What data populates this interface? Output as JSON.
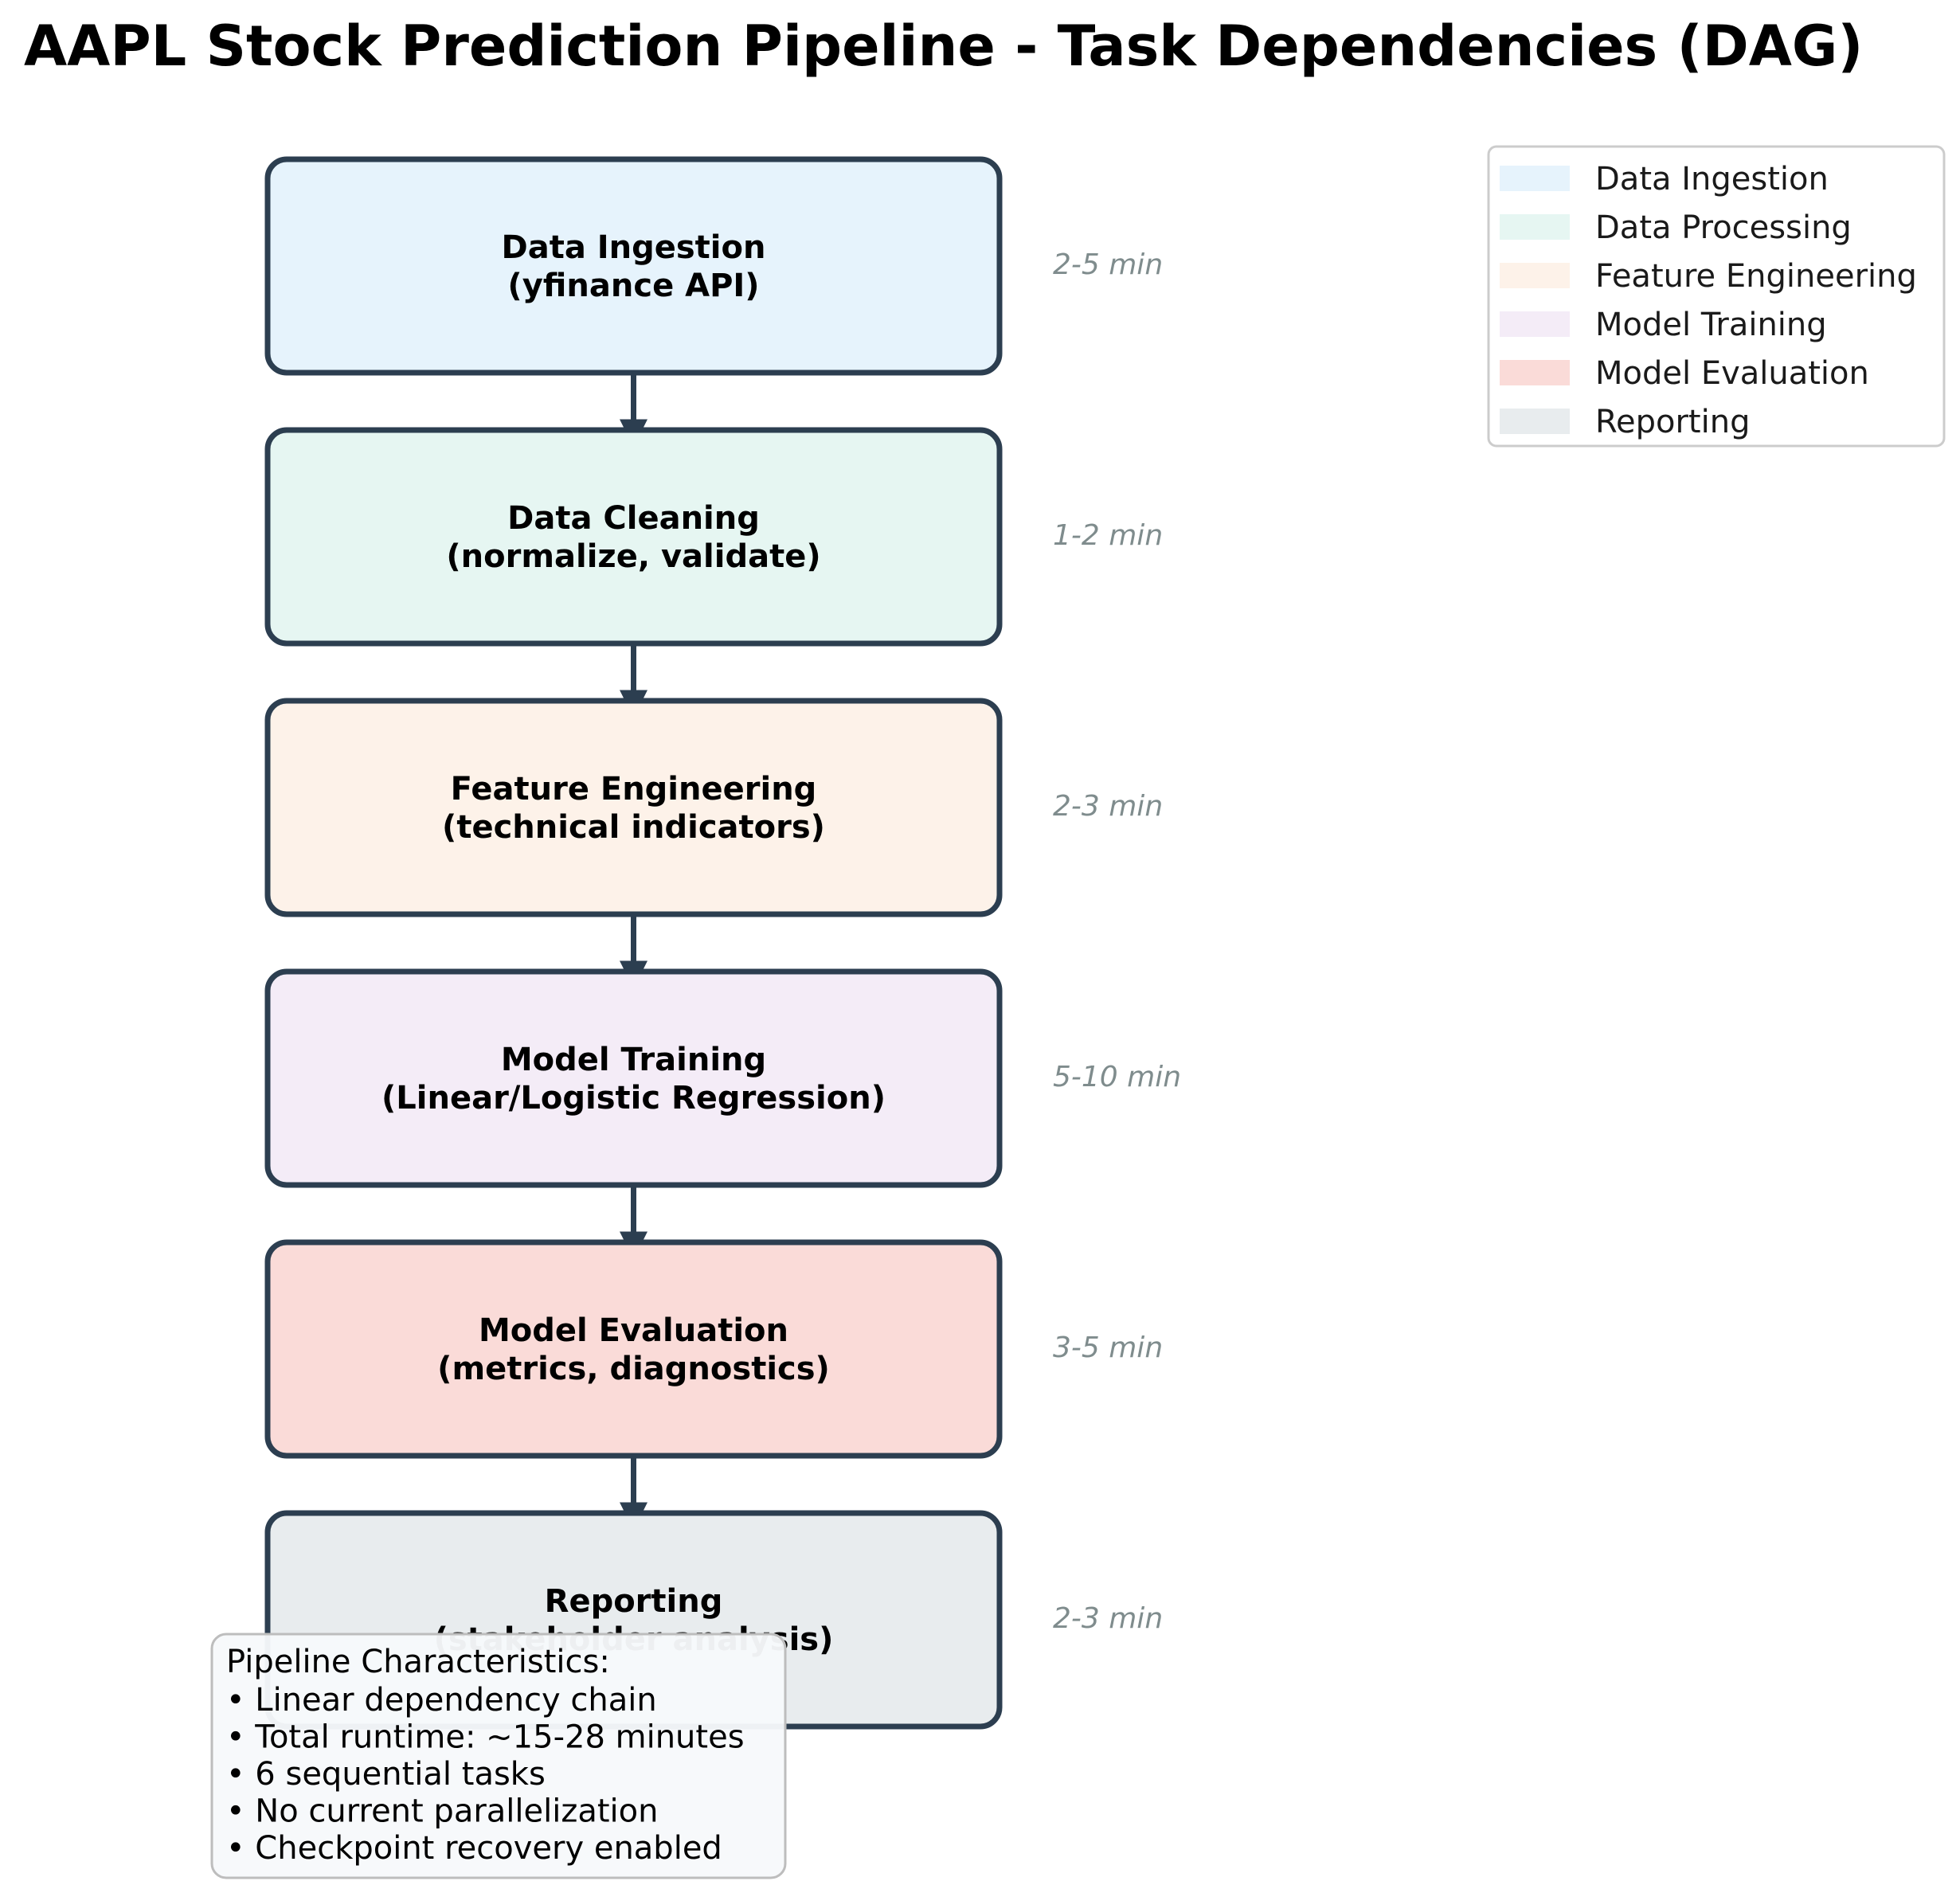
{
  "title": "AAPL Stock Prediction Pipeline - Task Dependencies (DAG)",
  "colors": {
    "node_border": "#2c3e50",
    "arrow": "#2c3e50",
    "duration_text": "#7f8c8d",
    "legend_border": "#cccccc",
    "notes_background": "#f7f9fb",
    "notes_border": "#bdbdbd"
  },
  "nodes": [
    {
      "name": "Data Ingestion",
      "detail": "(yfinance API)",
      "duration": "2-5 min",
      "color": "#e6f3fc"
    },
    {
      "name": "Data Cleaning",
      "detail": "(normalize, validate)",
      "duration": "1-2 min",
      "color": "#e6f6f2"
    },
    {
      "name": "Feature Engineering",
      "detail": "(technical indicators)",
      "duration": "2-3 min",
      "color": "#fdf2e9"
    },
    {
      "name": "Model Training",
      "detail": "(Linear/Logistic Regression)",
      "duration": "5-10 min",
      "color": "#f4ecf7"
    },
    {
      "name": "Model Evaluation",
      "detail": "(metrics, diagnostics)",
      "duration": "3-5 min",
      "color": "#fadbd8"
    },
    {
      "name": "Reporting",
      "detail": "(stakeholder analysis)",
      "duration": "2-3 min",
      "color": "#e8ecee"
    }
  ],
  "edges": [
    {
      "from": 0,
      "to": 1
    },
    {
      "from": 1,
      "to": 2
    },
    {
      "from": 2,
      "to": 3
    },
    {
      "from": 3,
      "to": 4
    },
    {
      "from": 4,
      "to": 5
    }
  ],
  "legend": {
    "placement": "top-right",
    "items": [
      {
        "label": "Data Ingestion",
        "color": "#e6f3fc"
      },
      {
        "label": "Data Processing",
        "color": "#e6f6f2"
      },
      {
        "label": "Feature Engineering",
        "color": "#fdf2e9"
      },
      {
        "label": "Model Training",
        "color": "#f4ecf7"
      },
      {
        "label": "Model Evaluation",
        "color": "#fadbd8"
      },
      {
        "label": "Reporting",
        "color": "#e8ecee"
      }
    ]
  },
  "notes": {
    "heading": "Pipeline Characteristics:",
    "lines": [
      "• Linear dependency chain",
      "• Total runtime: ~15-28 minutes",
      "• 6 sequential tasks",
      "• No current parallelization",
      "• Checkpoint recovery enabled"
    ]
  }
}
